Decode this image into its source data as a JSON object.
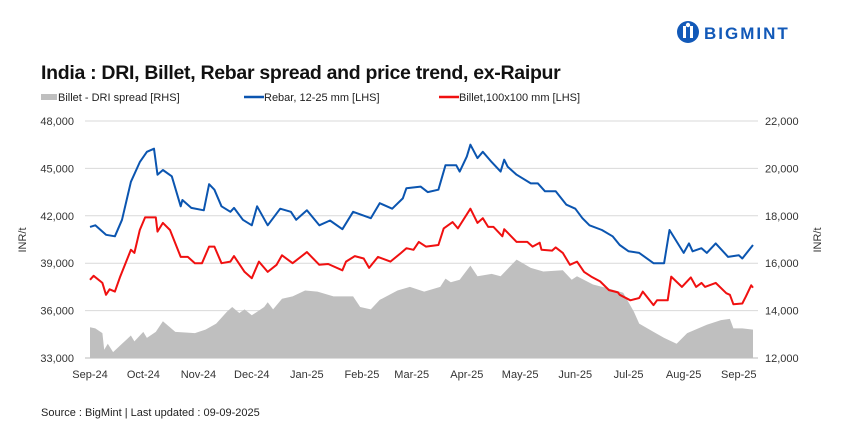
{
  "logo": {
    "text": "BIGMINT",
    "color": "#1259b8"
  },
  "chart_data": {
    "type": "line+area",
    "title": "India : DRI, Billet, Rebar spread and price trend, ex-Raipur",
    "ylabel_left": "INR/t",
    "ylabel_right": "INR/t",
    "ylim_left": [
      33000,
      48000
    ],
    "ylim_right": [
      12000,
      22000
    ],
    "yticks_left": [
      "48,000",
      "45,000",
      "42,000",
      "39,000",
      "36,000",
      "33,000"
    ],
    "yticks_right": [
      "22,000",
      "20,000",
      "18,000",
      "16,000",
      "14,000",
      "12,000"
    ],
    "xlim": [
      "2024-09-01",
      "2025-09-09"
    ],
    "xticks": [
      {
        "label": "Sep-24",
        "date": "2024-09-01"
      },
      {
        "label": "Oct-24",
        "date": "2024-10-01"
      },
      {
        "label": "Nov-24",
        "date": "2024-11-01"
      },
      {
        "label": "Dec-24",
        "date": "2024-12-01"
      },
      {
        "label": "Jan-25",
        "date": "2025-01-01"
      },
      {
        "label": "Feb-25",
        "date": "2025-02-01"
      },
      {
        "label": "Mar-25",
        "date": "2025-03-01"
      },
      {
        "label": "Apr-25",
        "date": "2025-04-01"
      },
      {
        "label": "May-25",
        "date": "2025-05-01"
      },
      {
        "label": "Jun-25",
        "date": "2025-06-01"
      },
      {
        "label": "Jul-25",
        "date": "2025-07-01"
      },
      {
        "label": "Aug-25",
        "date": "2025-08-01"
      },
      {
        "label": "Sep-25",
        "date": "2025-09-01"
      }
    ],
    "grid": true,
    "legend_position": "top",
    "source": "Source : BigMint | Last updated : 09-09-2025",
    "series": [
      {
        "name": "Billet - DRI spread  [RHS]",
        "type": "area",
        "axis": "right",
        "color": "#bfbfbf",
        "points": [
          [
            "2024-09-01",
            13300
          ],
          [
            "2024-09-04",
            13250
          ],
          [
            "2024-09-08",
            13050
          ],
          [
            "2024-09-09",
            12350
          ],
          [
            "2024-09-11",
            12600
          ],
          [
            "2024-09-14",
            12250
          ],
          [
            "2024-09-19",
            12600
          ],
          [
            "2024-09-24",
            12950
          ],
          [
            "2024-09-26",
            12700
          ],
          [
            "2024-10-01",
            13100
          ],
          [
            "2024-10-03",
            12850
          ],
          [
            "2024-10-08",
            13100
          ],
          [
            "2024-10-12",
            13550
          ],
          [
            "2024-10-19",
            13100
          ],
          [
            "2024-10-30",
            13050
          ],
          [
            "2024-11-05",
            13200
          ],
          [
            "2024-11-11",
            13450
          ],
          [
            "2024-11-17",
            13950
          ],
          [
            "2024-11-20",
            14150
          ],
          [
            "2024-11-24",
            13900
          ],
          [
            "2024-11-27",
            14050
          ],
          [
            "2024-12-01",
            13800
          ],
          [
            "2024-12-08",
            14150
          ],
          [
            "2024-12-10",
            14350
          ],
          [
            "2024-12-13",
            14050
          ],
          [
            "2024-12-18",
            14500
          ],
          [
            "2024-12-24",
            14600
          ],
          [
            "2024-12-31",
            14850
          ],
          [
            "2025-01-07",
            14800
          ],
          [
            "2025-01-16",
            14600
          ],
          [
            "2025-01-27",
            14600
          ],
          [
            "2025-01-31",
            14150
          ],
          [
            "2025-02-06",
            14050
          ],
          [
            "2025-02-11",
            14450
          ],
          [
            "2025-02-21",
            14850
          ],
          [
            "2025-02-28",
            15000
          ],
          [
            "2025-03-08",
            14800
          ],
          [
            "2025-03-17",
            15000
          ],
          [
            "2025-03-20",
            15350
          ],
          [
            "2025-03-23",
            15200
          ],
          [
            "2025-03-28",
            15300
          ],
          [
            "2025-04-03",
            15900
          ],
          [
            "2025-04-07",
            15450
          ],
          [
            "2025-04-15",
            15550
          ],
          [
            "2025-04-20",
            15450
          ],
          [
            "2025-04-29",
            16150
          ],
          [
            "2025-05-07",
            15800
          ],
          [
            "2025-05-14",
            15650
          ],
          [
            "2025-05-25",
            15700
          ],
          [
            "2025-05-30",
            15300
          ],
          [
            "2025-06-02",
            15450
          ],
          [
            "2025-06-11",
            15100
          ],
          [
            "2025-06-19",
            14950
          ],
          [
            "2025-06-28",
            14750
          ],
          [
            "2025-07-04",
            13950
          ],
          [
            "2025-07-07",
            13450
          ],
          [
            "2025-07-15",
            13100
          ],
          [
            "2025-07-21",
            12850
          ],
          [
            "2025-07-28",
            12600
          ],
          [
            "2025-08-03",
            13050
          ],
          [
            "2025-08-14",
            13400
          ],
          [
            "2025-08-22",
            13600
          ],
          [
            "2025-08-27",
            13650
          ],
          [
            "2025-08-29",
            13250
          ],
          [
            "2025-09-03",
            13250
          ],
          [
            "2025-09-09",
            13200
          ]
        ]
      },
      {
        "name": "Rebar, 12-25 mm [LHS]",
        "type": "line",
        "axis": "left",
        "color": "#0b55b0",
        "points": [
          [
            "2024-09-01",
            41300
          ],
          [
            "2024-09-04",
            41400
          ],
          [
            "2024-09-10",
            40800
          ],
          [
            "2024-09-15",
            40700
          ],
          [
            "2024-09-19",
            41750
          ],
          [
            "2024-09-24",
            44150
          ],
          [
            "2024-09-29",
            45400
          ],
          [
            "2024-10-03",
            46050
          ],
          [
            "2024-10-07",
            46250
          ],
          [
            "2024-10-09",
            44600
          ],
          [
            "2024-10-12",
            44900
          ],
          [
            "2024-10-17",
            44500
          ],
          [
            "2024-10-22",
            42600
          ],
          [
            "2024-10-23",
            43000
          ],
          [
            "2024-10-28",
            42500
          ],
          [
            "2024-11-04",
            42350
          ],
          [
            "2024-11-07",
            44000
          ],
          [
            "2024-11-10",
            43650
          ],
          [
            "2024-11-14",
            42600
          ],
          [
            "2024-11-19",
            42250
          ],
          [
            "2024-11-21",
            42500
          ],
          [
            "2024-11-26",
            41750
          ],
          [
            "2024-12-01",
            41400
          ],
          [
            "2024-12-04",
            42600
          ],
          [
            "2024-12-10",
            41400
          ],
          [
            "2024-12-17",
            42450
          ],
          [
            "2024-12-23",
            42250
          ],
          [
            "2024-12-26",
            41750
          ],
          [
            "2025-01-01",
            42350
          ],
          [
            "2025-01-08",
            41400
          ],
          [
            "2025-01-14",
            41700
          ],
          [
            "2025-01-21",
            41150
          ],
          [
            "2025-01-27",
            42250
          ],
          [
            "2025-02-06",
            41850
          ],
          [
            "2025-02-11",
            42800
          ],
          [
            "2025-02-18",
            42450
          ],
          [
            "2025-02-24",
            43100
          ],
          [
            "2025-02-26",
            43750
          ],
          [
            "2025-03-06",
            43850
          ],
          [
            "2025-03-10",
            43500
          ],
          [
            "2025-03-16",
            43650
          ],
          [
            "2025-03-20",
            45200
          ],
          [
            "2025-03-26",
            45200
          ],
          [
            "2025-03-28",
            44800
          ],
          [
            "2025-04-01",
            45750
          ],
          [
            "2025-04-03",
            46500
          ],
          [
            "2025-04-07",
            45650
          ],
          [
            "2025-04-10",
            46050
          ],
          [
            "2025-04-15",
            45400
          ],
          [
            "2025-04-20",
            44800
          ],
          [
            "2025-04-22",
            45550
          ],
          [
            "2025-04-24",
            45100
          ],
          [
            "2025-04-29",
            44600
          ],
          [
            "2025-05-07",
            44050
          ],
          [
            "2025-05-11",
            44050
          ],
          [
            "2025-05-15",
            43550
          ],
          [
            "2025-05-21",
            43550
          ],
          [
            "2025-05-27",
            42700
          ],
          [
            "2025-06-01",
            42450
          ],
          [
            "2025-06-05",
            41850
          ],
          [
            "2025-06-09",
            41400
          ],
          [
            "2025-06-16",
            41100
          ],
          [
            "2025-06-22",
            40700
          ],
          [
            "2025-06-26",
            40150
          ],
          [
            "2025-07-01",
            39750
          ],
          [
            "2025-07-07",
            39650
          ],
          [
            "2025-07-15",
            39000
          ],
          [
            "2025-07-21",
            39000
          ],
          [
            "2025-07-24",
            41100
          ],
          [
            "2025-08-01",
            39650
          ],
          [
            "2025-08-04",
            40250
          ],
          [
            "2025-08-06",
            39750
          ],
          [
            "2025-08-11",
            39950
          ],
          [
            "2025-08-14",
            39650
          ],
          [
            "2025-08-19",
            40250
          ],
          [
            "2025-08-26",
            39400
          ],
          [
            "2025-09-01",
            39500
          ],
          [
            "2025-09-03",
            39300
          ],
          [
            "2025-09-09",
            40150
          ]
        ]
      },
      {
        "name": "Billet,100x100 mm [LHS]",
        "type": "line",
        "axis": "left",
        "color": "#f01010",
        "points": [
          [
            "2024-09-01",
            37950
          ],
          [
            "2024-09-03",
            38200
          ],
          [
            "2024-09-08",
            37750
          ],
          [
            "2024-09-10",
            37000
          ],
          [
            "2024-09-12",
            37350
          ],
          [
            "2024-09-15",
            37200
          ],
          [
            "2024-09-18",
            38150
          ],
          [
            "2024-09-24",
            39850
          ],
          [
            "2024-09-26",
            39650
          ],
          [
            "2024-09-29",
            41100
          ],
          [
            "2024-10-02",
            41900
          ],
          [
            "2024-10-08",
            41900
          ],
          [
            "2024-10-09",
            41000
          ],
          [
            "2024-10-12",
            41550
          ],
          [
            "2024-10-16",
            41100
          ],
          [
            "2024-10-22",
            39400
          ],
          [
            "2024-10-26",
            39400
          ],
          [
            "2024-10-30",
            39000
          ],
          [
            "2024-11-03",
            39000
          ],
          [
            "2024-11-07",
            40050
          ],
          [
            "2024-11-10",
            40050
          ],
          [
            "2024-11-14",
            39000
          ],
          [
            "2024-11-19",
            39100
          ],
          [
            "2024-11-21",
            39450
          ],
          [
            "2024-11-27",
            38450
          ],
          [
            "2024-12-01",
            38050
          ],
          [
            "2024-12-05",
            39100
          ],
          [
            "2024-12-10",
            38450
          ],
          [
            "2024-12-15",
            38900
          ],
          [
            "2024-12-18",
            39500
          ],
          [
            "2024-12-24",
            39000
          ],
          [
            "2025-01-01",
            39700
          ],
          [
            "2025-01-08",
            38900
          ],
          [
            "2025-01-13",
            38950
          ],
          [
            "2025-01-21",
            38550
          ],
          [
            "2025-01-23",
            39100
          ],
          [
            "2025-01-28",
            39450
          ],
          [
            "2025-02-02",
            39300
          ],
          [
            "2025-02-05",
            38700
          ],
          [
            "2025-02-10",
            39400
          ],
          [
            "2025-02-17",
            39100
          ],
          [
            "2025-02-23",
            39650
          ],
          [
            "2025-02-26",
            39950
          ],
          [
            "2025-03-02",
            39850
          ],
          [
            "2025-03-05",
            40350
          ],
          [
            "2025-03-09",
            40050
          ],
          [
            "2025-03-16",
            40150
          ],
          [
            "2025-03-19",
            41200
          ],
          [
            "2025-03-24",
            41600
          ],
          [
            "2025-03-27",
            41200
          ],
          [
            "2025-04-03",
            42450
          ],
          [
            "2025-04-07",
            41550
          ],
          [
            "2025-04-10",
            41850
          ],
          [
            "2025-04-13",
            41300
          ],
          [
            "2025-04-16",
            41300
          ],
          [
            "2025-04-21",
            40700
          ],
          [
            "2025-04-22",
            41150
          ],
          [
            "2025-04-29",
            40350
          ],
          [
            "2025-05-05",
            40350
          ],
          [
            "2025-05-08",
            40050
          ],
          [
            "2025-05-12",
            40300
          ],
          [
            "2025-05-13",
            39850
          ],
          [
            "2025-05-19",
            39800
          ],
          [
            "2025-05-21",
            40000
          ],
          [
            "2025-05-25",
            39650
          ],
          [
            "2025-05-29",
            38900
          ],
          [
            "2025-06-02",
            39100
          ],
          [
            "2025-06-06",
            38450
          ],
          [
            "2025-06-10",
            38150
          ],
          [
            "2025-06-15",
            37850
          ],
          [
            "2025-06-20",
            37300
          ],
          [
            "2025-06-25",
            37150
          ],
          [
            "2025-06-26",
            37000
          ],
          [
            "2025-07-02",
            36650
          ],
          [
            "2025-07-07",
            36800
          ],
          [
            "2025-07-09",
            37200
          ],
          [
            "2025-07-15",
            36350
          ],
          [
            "2025-07-17",
            36650
          ],
          [
            "2025-07-23",
            36650
          ],
          [
            "2025-07-25",
            38150
          ],
          [
            "2025-07-31",
            37500
          ],
          [
            "2025-08-05",
            38100
          ],
          [
            "2025-08-08",
            37500
          ],
          [
            "2025-08-11",
            37750
          ],
          [
            "2025-08-13",
            37500
          ],
          [
            "2025-08-19",
            37750
          ],
          [
            "2025-08-25",
            37100
          ],
          [
            "2025-08-27",
            37000
          ],
          [
            "2025-08-29",
            36400
          ],
          [
            "2025-09-03",
            36450
          ],
          [
            "2025-09-05",
            36900
          ],
          [
            "2025-09-08",
            37600
          ],
          [
            "2025-09-09",
            37450
          ]
        ]
      }
    ]
  }
}
